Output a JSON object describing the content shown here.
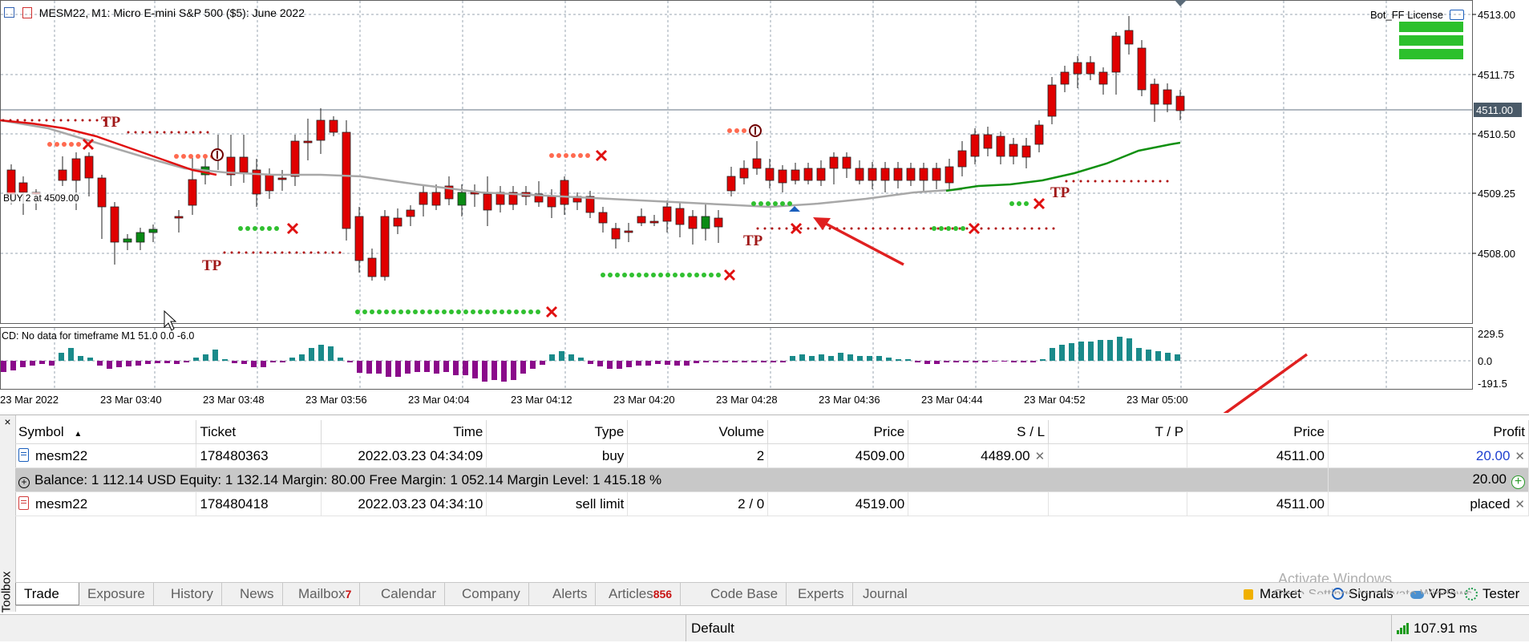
{
  "chart": {
    "title": "MESM22, M1:  Micro E-mini S&P 500 ($5): June 2022",
    "bot_label": "Bot_FF  License",
    "indicator_label": "CD: No data for timeframe M1 51.0 0.0 -6.0",
    "buy_label": "BUY 2 at 4509.00",
    "tp_label": "TP",
    "price_axis": [
      "4513.00",
      "4511.75",
      "4510.50",
      "4509.25",
      "4508.00"
    ],
    "current_price": "4511.00",
    "sub_axis": [
      "229.5",
      "0.0",
      "-191.5"
    ],
    "time_axis": [
      "23 Mar 2022",
      "23 Mar 03:40",
      "23 Mar 03:48",
      "23 Mar 03:56",
      "23 Mar 04:04",
      "23 Mar 04:12",
      "23 Mar 04:20",
      "23 Mar 04:28",
      "23 Mar 04:36",
      "23 Mar 04:44",
      "23 Mar 04:52",
      "23 Mar 05:00"
    ],
    "colors": {
      "bull": "#0a8a14",
      "bear": "#e00000",
      "ma_red": "#e01010",
      "ma_gray": "#a8a8a8",
      "ma_green": "#109010",
      "hist_up": "#1a8a8a",
      "hist_down": "#8a0a8a",
      "arrow": "#e02020"
    }
  },
  "table": {
    "headers": {
      "symbol": "Symbol",
      "ticket": "Ticket",
      "time": "Time",
      "type": "Type",
      "volume": "Volume",
      "price": "Price",
      "sl": "S / L",
      "tp": "T / P",
      "cur_price": "Price",
      "profit": "Profit"
    },
    "rows": [
      {
        "symbol": "mesm22",
        "ticket": "178480363",
        "time": "2022.03.23 04:34:09",
        "type": "buy",
        "volume": "2",
        "price": "4509.00",
        "sl": "4489.00",
        "tp": "",
        "cur_price": "4511.00",
        "profit": "20.00"
      },
      {
        "symbol": "mesm22",
        "ticket": "178480418",
        "time": "2022.03.23 04:34:10",
        "type": "sell limit",
        "volume": "2 / 0",
        "price": "4519.00",
        "sl": "",
        "tp": "",
        "cur_price": "4511.00",
        "profit": "placed"
      }
    ],
    "balance_text": "Balance: 1 112.14 USD  Equity: 1 132.14  Margin: 80.00  Free Margin: 1 052.14  Margin Level: 1 415.18 %",
    "balance_profit": "20.00"
  },
  "toolbox_label": "Toolbox",
  "tabs": [
    {
      "label": "Trade",
      "badge": ""
    },
    {
      "label": "Exposure",
      "badge": ""
    },
    {
      "label": "History",
      "badge": ""
    },
    {
      "label": "News",
      "badge": ""
    },
    {
      "label": "Mailbox",
      "badge": "7"
    },
    {
      "label": "Calendar",
      "badge": ""
    },
    {
      "label": "Company",
      "badge": ""
    },
    {
      "label": "Alerts",
      "badge": ""
    },
    {
      "label": "Articles",
      "badge": "856"
    },
    {
      "label": "Code Base",
      "badge": ""
    },
    {
      "label": "Experts",
      "badge": ""
    },
    {
      "label": "Journal",
      "badge": ""
    }
  ],
  "right_tools": {
    "market": "Market",
    "signals": "Signals",
    "vps": "VPS",
    "tester": "Tester"
  },
  "watermark": {
    "line1": "Activate Windows",
    "line2": "Go to Settings to activate Windows."
  },
  "status": {
    "profile": "Default",
    "ping": "107.91 ms"
  }
}
